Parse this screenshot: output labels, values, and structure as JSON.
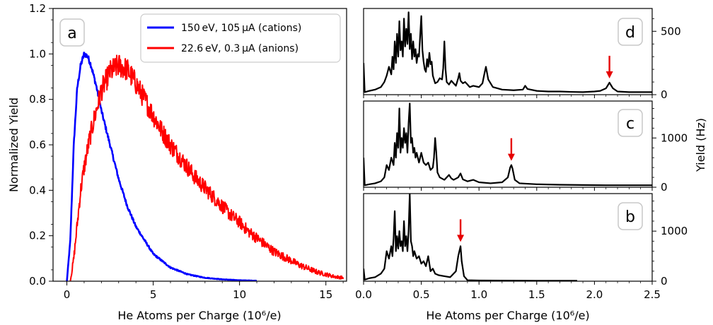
{
  "chart_data": [
    {
      "panel": "a",
      "type": "line",
      "xlabel": "He Atoms per Charge (10⁶/e)",
      "ylabel": "Normalized Yield",
      "xlim": [
        -0.8,
        16.2
      ],
      "ylim": [
        0.0,
        1.2
      ],
      "xticks": [
        0,
        5,
        10,
        15
      ],
      "yticks": [
        0.0,
        0.2,
        0.4,
        0.6,
        0.8,
        1.0,
        1.2
      ],
      "ytick_labels": [
        "0.0",
        "0.2",
        "0.4",
        "0.6",
        "0.8",
        "1.0",
        "1.2"
      ],
      "legend_position": "top-right",
      "series": [
        {
          "name": "150 eV, 105 μA (cations)",
          "color": "#0000ff",
          "x": [
            0,
            0.2,
            0.4,
            0.6,
            0.8,
            1.0,
            1.2,
            1.4,
            1.7,
            2.0,
            2.5,
            3.0,
            3.5,
            4.0,
            5.0,
            6.0,
            7.0,
            8.0,
            9.0,
            10.0,
            11.0
          ],
          "y": [
            0.0,
            0.18,
            0.6,
            0.85,
            0.95,
            1.0,
            0.99,
            0.95,
            0.86,
            0.75,
            0.6,
            0.45,
            0.33,
            0.24,
            0.12,
            0.06,
            0.03,
            0.015,
            0.008,
            0.004,
            0.002
          ]
        },
        {
          "name": "22.6 eV, 0.3 μA (anions)",
          "color": "#ff0000",
          "x": [
            0.2,
            0.4,
            0.6,
            0.8,
            1.0,
            1.3,
            1.6,
            2.0,
            2.5,
            3.0,
            3.5,
            4.0,
            4.5,
            5.0,
            5.5,
            6.0,
            6.5,
            7.0,
            7.5,
            8.0,
            8.5,
            9.0,
            9.5,
            10.0,
            10.5,
            11.0,
            11.5,
            12.0,
            12.5,
            13.0,
            13.5,
            14.0,
            14.5,
            15.0,
            15.5,
            16.0
          ],
          "y": [
            0.0,
            0.1,
            0.25,
            0.4,
            0.5,
            0.62,
            0.72,
            0.84,
            0.92,
            0.95,
            0.93,
            0.87,
            0.8,
            0.73,
            0.66,
            0.6,
            0.55,
            0.5,
            0.45,
            0.41,
            0.37,
            0.33,
            0.29,
            0.26,
            0.22,
            0.19,
            0.16,
            0.13,
            0.11,
            0.09,
            0.07,
            0.055,
            0.04,
            0.03,
            0.02,
            0.015
          ]
        }
      ]
    },
    {
      "panel": "d",
      "type": "line",
      "xlim": [
        0,
        2.5
      ],
      "ylim": [
        0,
        680
      ],
      "yticks": [
        0,
        500
      ],
      "ytick_labels": [
        "0",
        "500"
      ],
      "arrow_x": 2.13,
      "series": [
        {
          "color": "#000000",
          "x": [
            0.0,
            0.01,
            0.05,
            0.1,
            0.15,
            0.18,
            0.2,
            0.22,
            0.24,
            0.25,
            0.26,
            0.27,
            0.28,
            0.29,
            0.3,
            0.31,
            0.32,
            0.33,
            0.34,
            0.35,
            0.36,
            0.37,
            0.38,
            0.39,
            0.4,
            0.41,
            0.42,
            0.43,
            0.44,
            0.45,
            0.46,
            0.47,
            0.48,
            0.49,
            0.5,
            0.51,
            0.52,
            0.53,
            0.54,
            0.55,
            0.56,
            0.57,
            0.58,
            0.59,
            0.6,
            0.62,
            0.64,
            0.66,
            0.68,
            0.69,
            0.7,
            0.71,
            0.72,
            0.74,
            0.76,
            0.78,
            0.8,
            0.82,
            0.83,
            0.84,
            0.86,
            0.88,
            0.9,
            0.92,
            0.95,
            1.0,
            1.03,
            1.05,
            1.06,
            1.08,
            1.12,
            1.2,
            1.3,
            1.38,
            1.4,
            1.42,
            1.5,
            1.6,
            1.7,
            1.8,
            1.9,
            2.0,
            2.05,
            2.1,
            2.12,
            2.13,
            2.14,
            2.16,
            2.2,
            2.3,
            2.4,
            2.5
          ],
          "y": [
            250,
            20,
            30,
            40,
            60,
            100,
            150,
            220,
            160,
            300,
            200,
            420,
            250,
            480,
            300,
            580,
            350,
            420,
            300,
            600,
            380,
            520,
            400,
            650,
            360,
            480,
            280,
            420,
            300,
            360,
            250,
            320,
            300,
            460,
            620,
            350,
            260,
            200,
            180,
            280,
            220,
            330,
            240,
            260,
            150,
            90,
            100,
            130,
            120,
            210,
            420,
            200,
            100,
            80,
            110,
            90,
            70,
            130,
            170,
            110,
            90,
            100,
            80,
            60,
            70,
            60,
            90,
            180,
            220,
            120,
            60,
            40,
            35,
            40,
            70,
            45,
            30,
            25,
            25,
            22,
            20,
            25,
            30,
            50,
            80,
            95,
            80,
            50,
            25,
            20,
            20,
            20
          ]
        }
      ]
    },
    {
      "panel": "c",
      "type": "line",
      "xlim": [
        0,
        2.5
      ],
      "ylim": [
        0,
        1750
      ],
      "yticks": [
        0,
        1000
      ],
      "ytick_labels": [
        "0",
        "1000"
      ],
      "ylabel": "Yield (Hz)",
      "arrow_x": 1.28,
      "series": [
        {
          "color": "#000000",
          "x": [
            0.0,
            0.01,
            0.05,
            0.1,
            0.15,
            0.18,
            0.2,
            0.22,
            0.24,
            0.26,
            0.27,
            0.28,
            0.29,
            0.3,
            0.31,
            0.32,
            0.33,
            0.34,
            0.35,
            0.36,
            0.37,
            0.38,
            0.39,
            0.4,
            0.41,
            0.42,
            0.43,
            0.44,
            0.45,
            0.46,
            0.48,
            0.5,
            0.52,
            0.54,
            0.56,
            0.58,
            0.6,
            0.61,
            0.62,
            0.63,
            0.64,
            0.66,
            0.7,
            0.74,
            0.76,
            0.78,
            0.82,
            0.84,
            0.86,
            0.9,
            0.95,
            1.0,
            1.1,
            1.2,
            1.25,
            1.27,
            1.28,
            1.29,
            1.31,
            1.35,
            1.5,
            1.7,
            1.9,
            2.1,
            2.3,
            2.5
          ],
          "y": [
            600,
            40,
            60,
            80,
            120,
            200,
            450,
            350,
            600,
            450,
            900,
            600,
            1100,
            800,
            1600,
            700,
            1000,
            800,
            1200,
            900,
            1100,
            700,
            1300,
            1700,
            900,
            1000,
            700,
            800,
            600,
            700,
            500,
            700,
            500,
            450,
            500,
            350,
            400,
            600,
            1000,
            700,
            300,
            200,
            150,
            250,
            180,
            150,
            200,
            280,
            160,
            120,
            150,
            100,
            80,
            100,
            200,
            400,
            450,
            380,
            150,
            80,
            60,
            50,
            45,
            40,
            40,
            40
          ]
        }
      ]
    },
    {
      "panel": "b",
      "type": "line",
      "xlim": [
        0,
        2.5
      ],
      "ylim": [
        0,
        1750
      ],
      "yticks": [
        0,
        1000
      ],
      "ytick_labels": [
        "0",
        "1000"
      ],
      "xlabel": "He Atoms per Charge (10⁶/e)",
      "xticks": [
        0.0,
        0.5,
        1.0,
        1.5,
        2.0,
        2.5
      ],
      "xtick_labels": [
        "0.0",
        "0.5",
        "1.0",
        "1.5",
        "2.0",
        "2.5"
      ],
      "arrow_x": 0.84,
      "series": [
        {
          "color": "#000000",
          "x": [
            0.0,
            0.01,
            0.05,
            0.1,
            0.15,
            0.18,
            0.2,
            0.22,
            0.24,
            0.25,
            0.26,
            0.27,
            0.28,
            0.29,
            0.3,
            0.31,
            0.32,
            0.33,
            0.34,
            0.35,
            0.36,
            0.37,
            0.38,
            0.39,
            0.4,
            0.41,
            0.42,
            0.43,
            0.44,
            0.46,
            0.48,
            0.5,
            0.52,
            0.54,
            0.56,
            0.57,
            0.58,
            0.6,
            0.62,
            0.65,
            0.7,
            0.75,
            0.8,
            0.82,
            0.84,
            0.85,
            0.87,
            0.9,
            1.0,
            1.2,
            1.5,
            1.85
          ],
          "y": [
            250,
            30,
            60,
            80,
            150,
            250,
            600,
            450,
            700,
            500,
            850,
            1400,
            600,
            900,
            650,
            1000,
            700,
            800,
            600,
            1200,
            700,
            900,
            600,
            1000,
            1750,
            800,
            700,
            500,
            600,
            450,
            500,
            350,
            400,
            300,
            500,
            350,
            200,
            250,
            150,
            120,
            100,
            80,
            200,
            500,
            700,
            400,
            100,
            20,
            15,
            12,
            10,
            10
          ]
        }
      ]
    }
  ],
  "panels": {
    "a": {
      "letter": "a"
    },
    "b": {
      "letter": "b"
    },
    "c": {
      "letter": "c"
    },
    "d": {
      "letter": "d"
    }
  }
}
